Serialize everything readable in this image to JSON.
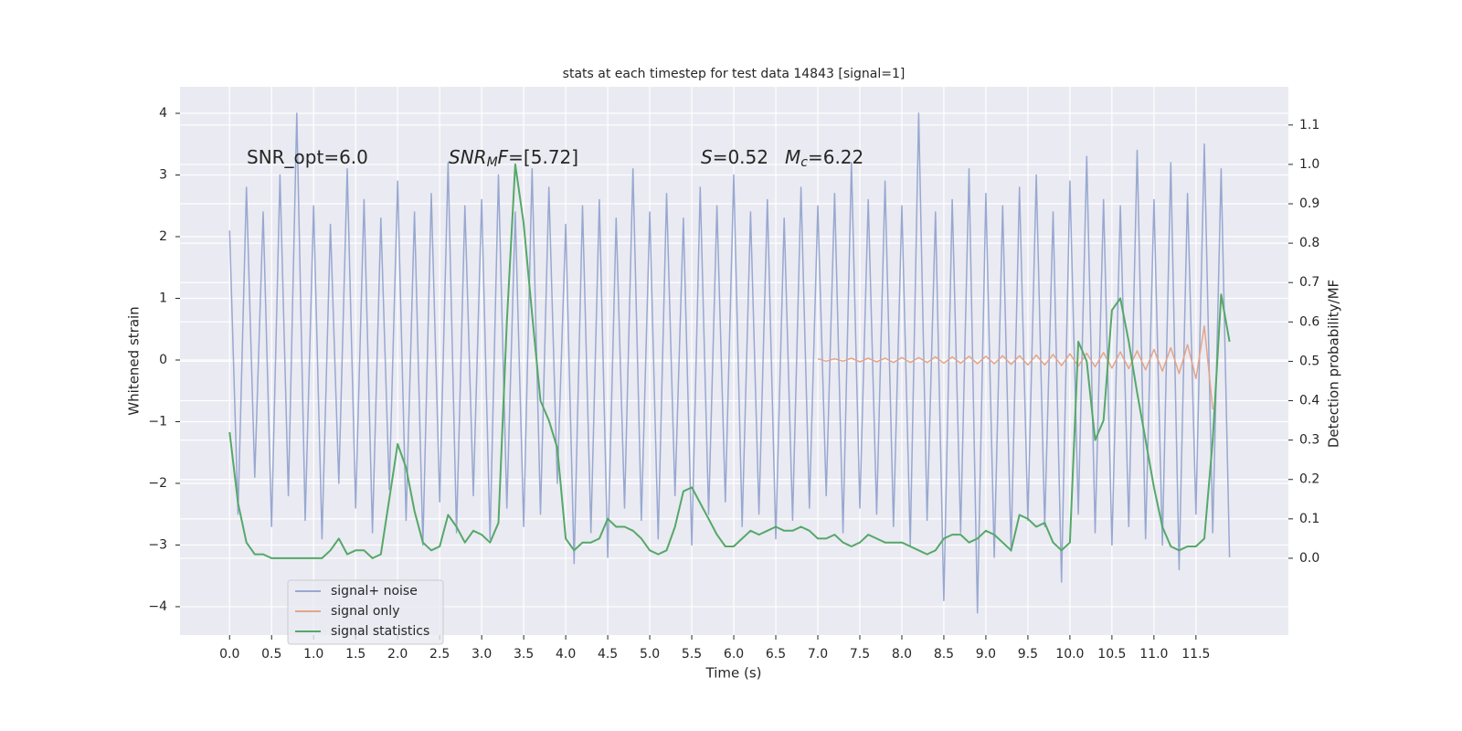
{
  "chart_data": {
    "type": "line",
    "title": "stats at each timestep for test data 14843 [signal=1]",
    "xlabel": "Time (s)",
    "ylabel": "Whitened strain",
    "y2label": "Detection probability/MF",
    "grid": true,
    "legend": "lower left",
    "xlim": [
      -0.59,
      12.6
    ],
    "ylim": [
      -4.46,
      4.43
    ],
    "y2lim": [
      -0.195,
      1.197
    ],
    "xticks": [
      {
        "value": 0,
        "label": "0.0"
      },
      {
        "value": 0.5,
        "label": "0.5"
      },
      {
        "value": 1,
        "label": "1.0"
      },
      {
        "value": 1.5,
        "label": "1.5"
      },
      {
        "value": 2,
        "label": "2.0"
      },
      {
        "value": 2.5,
        "label": "2.5"
      },
      {
        "value": 3,
        "label": "3.0"
      },
      {
        "value": 3.5,
        "label": "3.5"
      },
      {
        "value": 4,
        "label": "4.0"
      },
      {
        "value": 4.5,
        "label": "4.5"
      },
      {
        "value": 5,
        "label": "5.0"
      },
      {
        "value": 5.5,
        "label": "5.5"
      },
      {
        "value": 6,
        "label": "6.0"
      },
      {
        "value": 6.5,
        "label": "6.5"
      },
      {
        "value": 7,
        "label": "7.0"
      },
      {
        "value": 7.5,
        "label": "7.5"
      },
      {
        "value": 8,
        "label": "8.0"
      },
      {
        "value": 8.5,
        "label": "8.5"
      },
      {
        "value": 9,
        "label": "9.0"
      },
      {
        "value": 9.5,
        "label": "9.5"
      },
      {
        "value": 10,
        "label": "10.0"
      },
      {
        "value": 10.5,
        "label": "10.5"
      },
      {
        "value": 11,
        "label": "11.0"
      },
      {
        "value": 11.5,
        "label": "11.5"
      }
    ],
    "yticks": [
      {
        "value": -4,
        "label": "−4"
      },
      {
        "value": -3,
        "label": "−3"
      },
      {
        "value": -2,
        "label": "−2"
      },
      {
        "value": -1,
        "label": "−1"
      },
      0,
      1,
      2,
      3,
      4
    ],
    "y2ticks": [
      {
        "value": 0,
        "label": "0.0"
      },
      {
        "value": 0.1,
        "label": "0.1"
      },
      {
        "value": 0.2,
        "label": "0.2"
      },
      {
        "value": 0.3,
        "label": "0.3"
      },
      {
        "value": 0.4,
        "label": "0.4"
      },
      {
        "value": 0.5,
        "label": "0.5"
      },
      {
        "value": 0.6,
        "label": "0.6"
      },
      {
        "value": 0.7,
        "label": "0.7"
      },
      {
        "value": 0.8,
        "label": "0.8"
      },
      {
        "value": 0.9,
        "label": "0.9"
      },
      {
        "value": 1,
        "label": "1.0"
      },
      {
        "value": 1.1,
        "label": "1.1"
      }
    ],
    "annotations": [
      [
        {
          "text": "SNR_opt=6.0",
          "style": "normal"
        }
      ],
      [
        {
          "text": "SNR",
          "style": "italic"
        },
        {
          "text": "M",
          "style": "sub"
        },
        {
          "text": "F",
          "style": "italic"
        },
        {
          "text": "=[5.72]",
          "style": "normal"
        }
      ],
      [
        {
          "text": "S",
          "style": "italic"
        },
        {
          "text": "=0.52",
          "style": "normal"
        }
      ],
      [
        {
          "text": "M",
          "style": "italic"
        },
        {
          "text": "c",
          "style": "sub"
        },
        {
          "text": "=6.22",
          "style": "normal"
        }
      ]
    ],
    "x": [
      0,
      0.1,
      0.2,
      0.3,
      0.4,
      0.5,
      0.6,
      0.7,
      0.8,
      0.9,
      1,
      1.1,
      1.2,
      1.3,
      1.4,
      1.5,
      1.6,
      1.7,
      1.8,
      1.9,
      2,
      2.1,
      2.2,
      2.3,
      2.4,
      2.5,
      2.6,
      2.7,
      2.8,
      2.9,
      3,
      3.1,
      3.2,
      3.3,
      3.4,
      3.5,
      3.6,
      3.7,
      3.8,
      3.9,
      4,
      4.1,
      4.2,
      4.3,
      4.4,
      4.5,
      4.6,
      4.7,
      4.8,
      4.9,
      5,
      5.1,
      5.2,
      5.3,
      5.4,
      5.5,
      5.6,
      5.7,
      5.8,
      5.9,
      6,
      6.1,
      6.2,
      6.3,
      6.4,
      6.5,
      6.6,
      6.7,
      6.8,
      6.9,
      7,
      7.1,
      7.2,
      7.3,
      7.4,
      7.5,
      7.6,
      7.7,
      7.8,
      7.9,
      8,
      8.1,
      8.2,
      8.3,
      8.4,
      8.5,
      8.6,
      8.7,
      8.8,
      8.9,
      9,
      9.1,
      9.2,
      9.3,
      9.4,
      9.5,
      9.6,
      9.7,
      9.8,
      9.9,
      10,
      10.1,
      10.2,
      10.3,
      10.4,
      10.5,
      10.6,
      10.7,
      10.8,
      10.9,
      11,
      11.1,
      11.2,
      11.3,
      11.4,
      11.5,
      11.6,
      11.7,
      11.8,
      11.9
    ],
    "series": [
      {
        "name": "signal+ noise",
        "color": "#98a8d0",
        "values": [
          2.1,
          -2.5,
          2.8,
          -1.9,
          2.4,
          -2.7,
          3.0,
          -2.2,
          4.0,
          -2.6,
          2.5,
          -2.9,
          2.2,
          -2.0,
          3.1,
          -2.4,
          2.6,
          -2.8,
          2.3,
          -2.1,
          2.9,
          -2.6,
          2.4,
          -3.0,
          2.7,
          -2.3,
          3.2,
          -2.8,
          2.5,
          -2.2,
          2.6,
          -2.9,
          3.0,
          -2.4,
          2.4,
          -2.7,
          3.1,
          -2.5,
          2.8,
          -2.0,
          2.2,
          -3.3,
          2.5,
          -2.8,
          2.6,
          -3.2,
          2.3,
          -2.4,
          3.1,
          -2.6,
          2.4,
          -2.9,
          2.7,
          -2.2,
          2.3,
          -3.0,
          2.8,
          -2.5,
          2.5,
          -2.3,
          3.0,
          -2.7,
          2.4,
          -2.5,
          2.6,
          -2.9,
          2.3,
          -2.6,
          2.8,
          -2.4,
          2.5,
          -2.2,
          2.7,
          -2.8,
          3.2,
          -2.4,
          2.6,
          -2.5,
          2.9,
          -2.7,
          2.5,
          -3.0,
          4.0,
          -2.6,
          2.4,
          -3.9,
          2.6,
          -2.8,
          3.1,
          -4.1,
          2.7,
          -3.2,
          2.5,
          -3.1,
          2.8,
          -2.6,
          3.0,
          -2.7,
          2.4,
          -3.6,
          2.9,
          -2.5,
          3.3,
          -2.8,
          2.6,
          -3.0,
          2.5,
          -2.7,
          3.4,
          -2.9,
          2.6,
          -3.0,
          3.2,
          -3.4,
          2.7,
          -2.5,
          3.5,
          -2.8,
          3.1,
          -3.2
        ]
      },
      {
        "name": "signal only",
        "color": "#e3a58a",
        "x": [
          7,
          7.1,
          7.2,
          7.3,
          7.4,
          7.5,
          7.6,
          7.7,
          7.8,
          7.9,
          8,
          8.1,
          8.2,
          8.3,
          8.4,
          8.5,
          8.6,
          8.7,
          8.8,
          8.9,
          9,
          9.1,
          9.2,
          9.3,
          9.4,
          9.5,
          9.6,
          9.7,
          9.8,
          9.9,
          10,
          10.1,
          10.2,
          10.3,
          10.4,
          10.5,
          10.6,
          10.7,
          10.8,
          10.9,
          11,
          11.1,
          11.2,
          11.3,
          11.4,
          11.5,
          11.6,
          11.7
        ],
        "values": [
          0.02,
          -0.02,
          0.02,
          -0.02,
          0.03,
          -0.03,
          0.03,
          -0.03,
          0.03,
          -0.04,
          0.04,
          -0.04,
          0.04,
          -0.04,
          0.05,
          -0.05,
          0.05,
          -0.05,
          0.06,
          -0.06,
          0.06,
          -0.06,
          0.07,
          -0.07,
          0.07,
          -0.08,
          0.08,
          -0.08,
          0.09,
          -0.09,
          0.1,
          -0.1,
          0.11,
          -0.11,
          0.12,
          -0.13,
          0.13,
          -0.14,
          0.15,
          -0.16,
          0.17,
          -0.18,
          0.2,
          -0.22,
          0.25,
          -0.3,
          0.55,
          -0.8
        ]
      },
      {
        "name": "signal statistics",
        "color": "#55a868",
        "axis": "y2",
        "values": [
          0.32,
          0.14,
          0.04,
          0.01,
          0.01,
          0.0,
          0.0,
          0.0,
          0.0,
          0.0,
          0.0,
          0.0,
          0.02,
          0.05,
          0.01,
          0.02,
          0.02,
          0.0,
          0.01,
          0.15,
          0.29,
          0.23,
          0.12,
          0.04,
          0.02,
          0.03,
          0.11,
          0.08,
          0.04,
          0.07,
          0.06,
          0.04,
          0.09,
          0.6,
          1.0,
          0.85,
          0.62,
          0.4,
          0.35,
          0.28,
          0.05,
          0.02,
          0.04,
          0.04,
          0.05,
          0.1,
          0.08,
          0.08,
          0.07,
          0.05,
          0.02,
          0.01,
          0.02,
          0.08,
          0.17,
          0.18,
          0.14,
          0.1,
          0.06,
          0.03,
          0.03,
          0.05,
          0.07,
          0.06,
          0.07,
          0.08,
          0.07,
          0.07,
          0.08,
          0.07,
          0.05,
          0.05,
          0.06,
          0.04,
          0.03,
          0.04,
          0.06,
          0.05,
          0.04,
          0.04,
          0.04,
          0.03,
          0.02,
          0.01,
          0.02,
          0.05,
          0.06,
          0.06,
          0.04,
          0.05,
          0.07,
          0.06,
          0.04,
          0.02,
          0.11,
          0.1,
          0.08,
          0.09,
          0.04,
          0.02,
          0.04,
          0.55,
          0.5,
          0.3,
          0.35,
          0.63,
          0.66,
          0.55,
          0.42,
          0.3,
          0.18,
          0.08,
          0.03,
          0.02,
          0.03,
          0.03,
          0.05,
          0.3,
          0.67,
          0.55
        ]
      }
    ]
  }
}
